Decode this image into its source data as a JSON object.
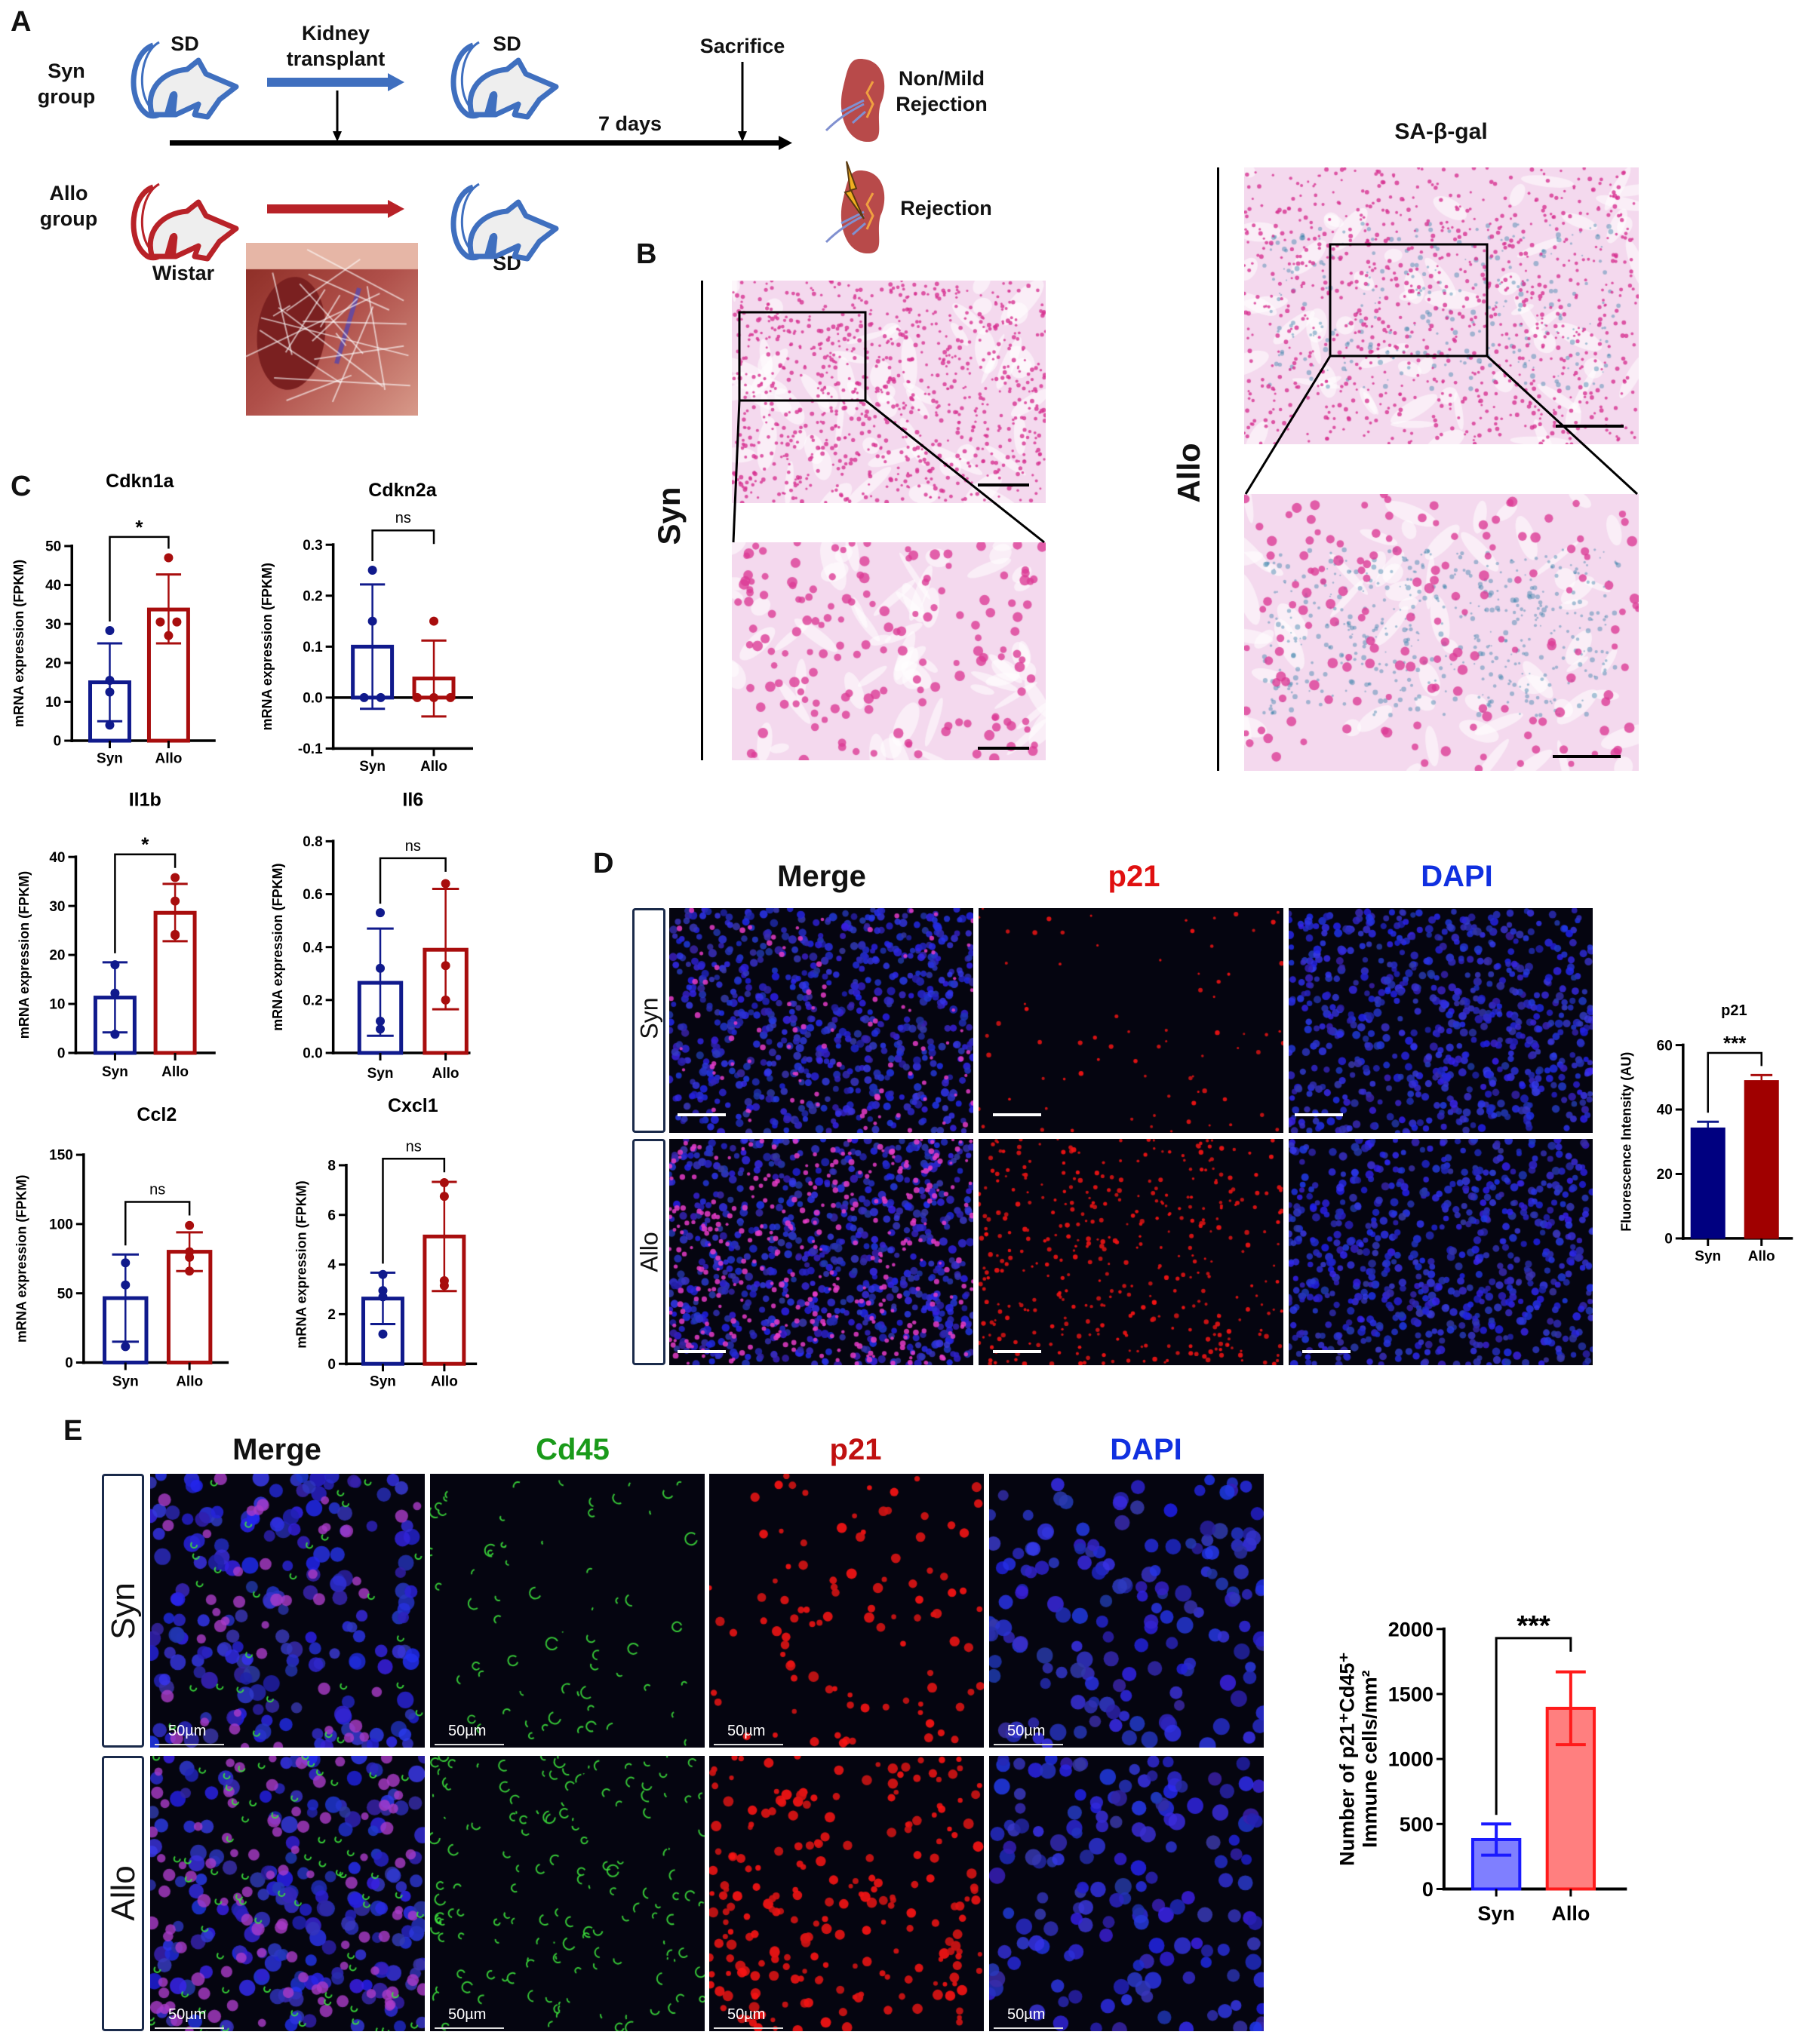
{
  "panels": {
    "a": "A",
    "b": "B",
    "c": "C",
    "d": "D",
    "e": "E"
  },
  "panel_a": {
    "syn_group": "Syn\ngroup",
    "allo_group": "Allo\ngroup",
    "sd_donor": "SD",
    "sd_recipient_syn": "SD",
    "sd_recipient_allo": "SD",
    "wistar": "Wistar",
    "kidney_transplant": "Kidney\ntransplant",
    "sacrifice": "Sacrifice",
    "days": "7 days",
    "non_mild_rejection": "Non/Mild\nRejection",
    "rejection": "Rejection",
    "colors": {
      "syn": "#3f6fbf",
      "allo": "#b82228"
    }
  },
  "panel_b": {
    "title": "SA-β-gal",
    "row_syn": "Syn",
    "row_allo": "Allo"
  },
  "panel_d": {
    "headers": [
      "Merge",
      "p21",
      "DAPI"
    ],
    "header_colors": [
      "#111111",
      "#e01010",
      "#1030e0"
    ],
    "rows": [
      "Syn",
      "Allo"
    ]
  },
  "panel_e": {
    "headers": [
      "Merge",
      "Cd45",
      "p21",
      "DAPI"
    ],
    "header_colors": [
      "#111111",
      "#1a9a1a",
      "#c01010",
      "#1030e0"
    ],
    "rows": [
      "Syn",
      "Allo"
    ],
    "scale_label": "50µm"
  },
  "chart_data": [
    {
      "type": "bar",
      "title": "Cdkn1a",
      "ylabel": "mRNA expression (FPKM)",
      "categories": [
        "Syn",
        "Allo"
      ],
      "ylim": [
        0,
        50
      ],
      "ticks": [
        0,
        10,
        20,
        30,
        40,
        50
      ],
      "tick_labels": [
        "0",
        "10",
        "20",
        "30",
        "40",
        "50"
      ],
      "series": [
        {
          "name": "Syn",
          "mean": 15,
          "err_upper": 25,
          "err_lower": 5,
          "points": [
            28.3,
            15.5,
            12.5,
            4
          ]
        },
        {
          "name": "Allo",
          "mean": 33.7,
          "err_upper": 42.7,
          "err_lower": 25,
          "points": [
            47,
            30.5,
            30.5,
            27
          ]
        }
      ],
      "significance": "*",
      "fill": "none"
    },
    {
      "type": "bar",
      "title": "Cdkn2a",
      "ylabel": "mRNA expression (FPKM)",
      "categories": [
        "Syn",
        "Allo"
      ],
      "ylim": [
        -0.1,
        0.3
      ],
      "ticks": [
        -0.1,
        0,
        0.1,
        0.2,
        0.3
      ],
      "tick_labels": [
        "-0.1",
        "0.0",
        "0.1",
        "0.2",
        "0.3"
      ],
      "series": [
        {
          "name": "Syn",
          "mean": 0.1,
          "err_upper": 0.222,
          "err_lower": -0.022,
          "points": [
            0.25,
            0.15,
            0,
            0
          ]
        },
        {
          "name": "Allo",
          "mean": 0.0375,
          "err_upper": 0.112,
          "err_lower": -0.037,
          "points": [
            0.15,
            0,
            0,
            0
          ]
        }
      ],
      "significance": "ns",
      "fill": "none"
    },
    {
      "type": "bar",
      "title": "Il1b",
      "ylabel": "mRNA expression (FPKM)",
      "categories": [
        "Syn",
        "Allo"
      ],
      "ylim": [
        0,
        40
      ],
      "ticks": [
        0,
        10,
        20,
        30,
        40
      ],
      "tick_labels": [
        "0",
        "10",
        "20",
        "30",
        "40"
      ],
      "series": [
        {
          "name": "Syn",
          "mean": 11.3,
          "err_upper": 18.5,
          "err_lower": 4.2,
          "points": [
            18,
            12.2,
            3.8
          ]
        },
        {
          "name": "Allo",
          "mean": 28.6,
          "err_upper": 34.5,
          "err_lower": 22.8,
          "points": [
            35.8,
            31,
            24,
            24.2
          ]
        }
      ],
      "significance": "*",
      "fill": "none"
    },
    {
      "type": "bar",
      "title": "Il6",
      "ylabel": "mRNA expression (FPKM)",
      "categories": [
        "Syn",
        "Allo"
      ],
      "ylim": [
        0,
        0.8
      ],
      "ticks": [
        0,
        0.2,
        0.4,
        0.6,
        0.8
      ],
      "tick_labels": [
        "0.0",
        "0.2",
        "0.4",
        "0.6",
        "0.8"
      ],
      "series": [
        {
          "name": "Syn",
          "mean": 0.265,
          "err_upper": 0.47,
          "err_lower": 0.065,
          "points": [
            0.53,
            0.32,
            0.12,
            0.09
          ]
        },
        {
          "name": "Allo",
          "mean": 0.39,
          "err_upper": 0.62,
          "err_lower": 0.165,
          "points": [
            0.64,
            0.33,
            0.2
          ]
        }
      ],
      "significance": "ns",
      "fill": "none"
    },
    {
      "type": "bar",
      "title": "Ccl2",
      "ylabel": "mRNA expression (FPKM)",
      "categories": [
        "Syn",
        "Allo"
      ],
      "ylim": [
        0,
        150
      ],
      "ticks": [
        0,
        50,
        100,
        150
      ],
      "tick_labels": [
        "0",
        "50",
        "100",
        "150"
      ],
      "series": [
        {
          "name": "Syn",
          "mean": 46.5,
          "err_upper": 78,
          "err_lower": 15,
          "points": [
            72,
            56,
            11.5
          ]
        },
        {
          "name": "Allo",
          "mean": 80,
          "err_upper": 94,
          "err_lower": 66,
          "points": [
            99,
            80,
            76,
            66
          ]
        }
      ],
      "significance": "ns",
      "fill": "none"
    },
    {
      "type": "bar",
      "title": "Cxcl1",
      "ylabel": "mRNA expression (FPKM)",
      "categories": [
        "Syn",
        "Allo"
      ],
      "ylim": [
        0,
        8
      ],
      "ticks": [
        0,
        2,
        4,
        6,
        8
      ],
      "tick_labels": [
        "0",
        "2",
        "4",
        "6",
        "8"
      ],
      "series": [
        {
          "name": "Syn",
          "mean": 2.63,
          "err_upper": 3.67,
          "err_lower": 1.6,
          "points": [
            3.6,
            2.95,
            2.7,
            1.2
          ]
        },
        {
          "name": "Allo",
          "mean": 5.13,
          "err_upper": 7.33,
          "err_lower": 2.93,
          "points": [
            7.3,
            6.75,
            3.15,
            3.35
          ]
        }
      ],
      "significance": "ns",
      "fill": "none"
    },
    {
      "type": "bar",
      "title": "p21",
      "ylabel": "Fluorescence Intensity (AU)",
      "categories": [
        "Syn",
        "Allo"
      ],
      "ylim": [
        0,
        60
      ],
      "ticks": [
        0,
        20,
        40,
        60
      ],
      "tick_labels": [
        "0",
        "20",
        "40",
        "60"
      ],
      "series": [
        {
          "name": "Syn",
          "mean": 34.3,
          "err_upper": 36.2,
          "err_lower": 34.3,
          "points": []
        },
        {
          "name": "Allo",
          "mean": 49,
          "err_upper": 50.7,
          "err_lower": 49,
          "points": []
        }
      ],
      "significance": "***",
      "fill": "solid"
    },
    {
      "type": "bar",
      "title": "",
      "ylabel": "Number of p21⁺Cd45⁺",
      "ylabel2": "Immune cells/mm²",
      "categories": [
        "Syn",
        "Allo"
      ],
      "ylim": [
        0,
        2000
      ],
      "ticks": [
        0,
        500,
        1000,
        1500,
        2000
      ],
      "tick_labels": [
        "0",
        "500",
        "1000",
        "1500",
        "2000"
      ],
      "series": [
        {
          "name": "Syn",
          "mean": 380,
          "err_upper": 500,
          "err_lower": 260,
          "points": []
        },
        {
          "name": "Allo",
          "mean": 1390,
          "err_upper": 1670,
          "err_lower": 1110,
          "points": []
        }
      ],
      "significance": "***",
      "fill": "light"
    }
  ],
  "colors": {
    "syn": "#101a8c",
    "allo": "#a80d0d",
    "syn_solid": "#000080",
    "allo_solid": "#a00000",
    "syn_light": "#7f7fff",
    "allo_light": "#ff7f7f",
    "syn_light_border": "#1a1aff",
    "allo_light_border": "#ff1a1a"
  }
}
